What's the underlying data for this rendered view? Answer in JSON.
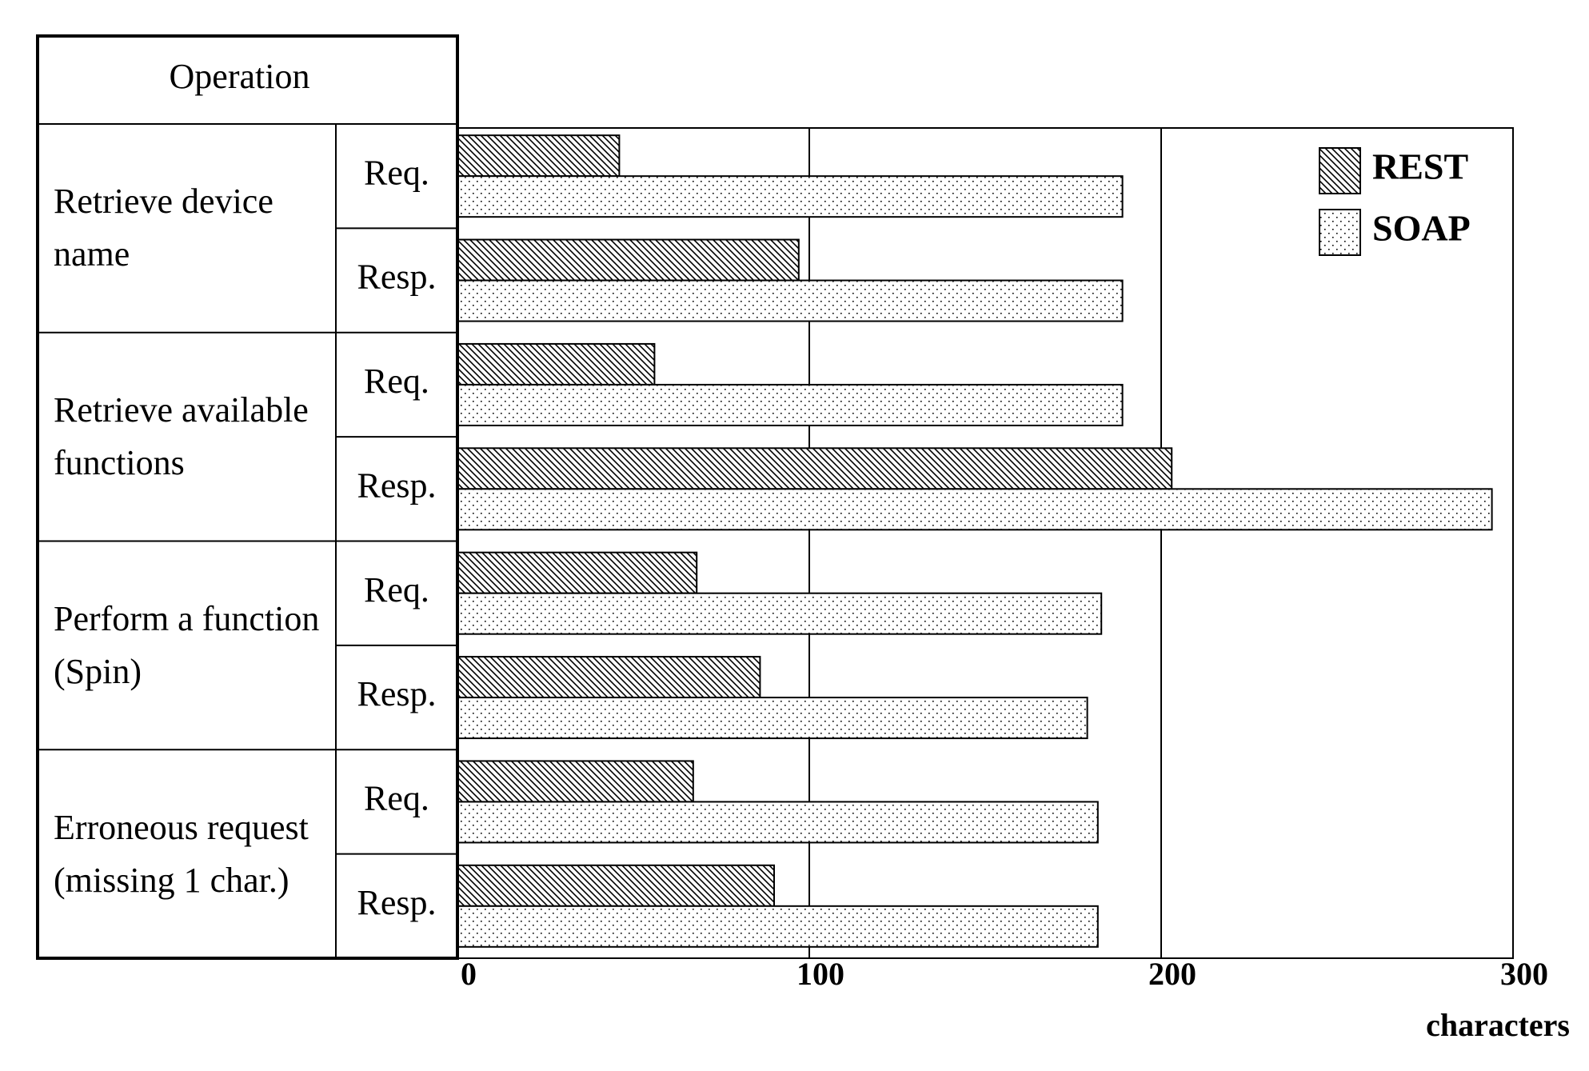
{
  "chart_data": {
    "type": "bar",
    "orientation": "horizontal",
    "table_header": "Operation",
    "groups": [
      "Retrieve device name",
      "Retrieve available functions",
      "Perform a function (Spin)",
      "Erroneous request (missing 1 char.)"
    ],
    "categories": [
      "Req.",
      "Resp.",
      "Req.",
      "Resp.",
      "Req.",
      "Resp.",
      "Req.",
      "Resp."
    ],
    "series": [
      {
        "name": "REST",
        "color": "#000000",
        "pattern": "hatch",
        "values": [
          46,
          97,
          56,
          203,
          68,
          86,
          67,
          90
        ]
      },
      {
        "name": "SOAP",
        "color": "#000000",
        "pattern": "dots",
        "values": [
          189,
          189,
          189,
          294,
          183,
          179,
          182,
          182
        ]
      }
    ],
    "xlabel": "characters",
    "xlim": [
      0,
      300
    ],
    "xticks": [
      0,
      100,
      200,
      300
    ],
    "grid": true,
    "legend": "upper right"
  }
}
